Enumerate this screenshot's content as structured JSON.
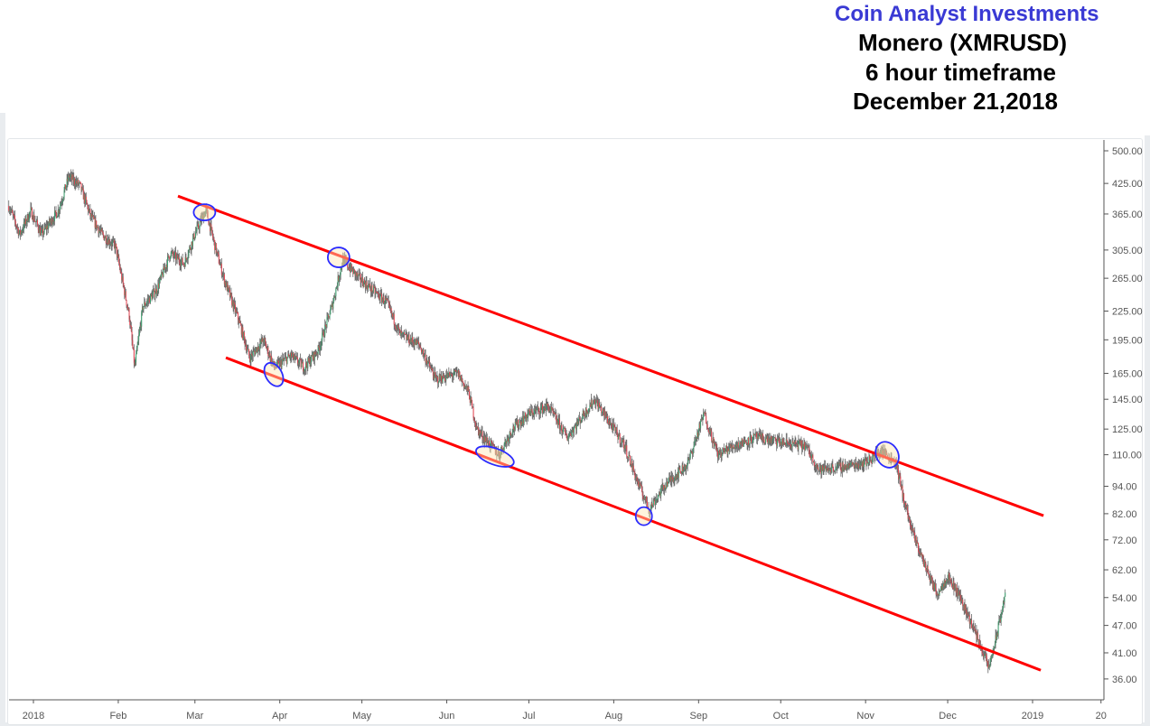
{
  "header": {
    "brand": "Coin Analyst Investments",
    "pair": "Monero (XMRUSD)",
    "timeframe": "6 hour timeframe",
    "date": "December 21,2018"
  },
  "colors": {
    "brand": "#3a3ad4",
    "up": "#3aa36f",
    "down": "#e8414f",
    "wick": "#666666",
    "channel": "#ff0000",
    "marker": "#2b2bff"
  },
  "chart_data": {
    "type": "candlestick",
    "title": "Monero (XMRUSD) 6 hour timeframe",
    "y_scale": "log",
    "ylim": [
      31,
      520
    ],
    "y_ticks": [
      "500.00",
      "425.00",
      "365.00",
      "305.00",
      "265.00",
      "225.00",
      "195.00",
      "165.00",
      "145.00",
      "125.00",
      "110.00",
      "94.00",
      "82.00",
      "72.00",
      "62.00",
      "54.00",
      "47.00",
      "41.00",
      "36.00"
    ],
    "x_ticks": [
      {
        "label": "2018",
        "day": 0
      },
      {
        "label": "Feb",
        "day": 31
      },
      {
        "label": "Mar",
        "day": 59
      },
      {
        "label": "Apr",
        "day": 90
      },
      {
        "label": "May",
        "day": 120
      },
      {
        "label": "Jun",
        "day": 151
      },
      {
        "label": "Jul",
        "day": 181
      },
      {
        "label": "Aug",
        "day": 212
      },
      {
        "label": "Sep",
        "day": 243
      },
      {
        "label": "Oct",
        "day": 273
      },
      {
        "label": "Nov",
        "day": 304
      },
      {
        "label": "Dec",
        "day": 334
      },
      {
        "label": "2019",
        "day": 365
      },
      {
        "label": "20",
        "day": 390
      }
    ],
    "xlim_days": [
      -9,
      395
    ],
    "price_path_approx": [
      [
        -9,
        380
      ],
      [
        -5,
        330
      ],
      [
        -1,
        370
      ],
      [
        3,
        330
      ],
      [
        9,
        370
      ],
      [
        13,
        440
      ],
      [
        17,
        420
      ],
      [
        21,
        360
      ],
      [
        25,
        330
      ],
      [
        30,
        310
      ],
      [
        35,
        220
      ],
      [
        37,
        170
      ],
      [
        40,
        230
      ],
      [
        45,
        250
      ],
      [
        50,
        300
      ],
      [
        55,
        285
      ],
      [
        59,
        330
      ],
      [
        63,
        372
      ],
      [
        67,
        300
      ],
      [
        70,
        260
      ],
      [
        75,
        215
      ],
      [
        79,
        178
      ],
      [
        84,
        195
      ],
      [
        88,
        170
      ],
      [
        94,
        180
      ],
      [
        99,
        170
      ],
      [
        104,
        185
      ],
      [
        109,
        230
      ],
      [
        113,
        290
      ],
      [
        119,
        265
      ],
      [
        129,
        235
      ],
      [
        134,
        200
      ],
      [
        141,
        190
      ],
      [
        147,
        160
      ],
      [
        155,
        165
      ],
      [
        159,
        150
      ],
      [
        162,
        125
      ],
      [
        170,
        110
      ],
      [
        175,
        125
      ],
      [
        181,
        135
      ],
      [
        188,
        140
      ],
      [
        195,
        120
      ],
      [
        205,
        145
      ],
      [
        212,
        125
      ],
      [
        216,
        115
      ],
      [
        221,
        95
      ],
      [
        225,
        84
      ],
      [
        231,
        95
      ],
      [
        239,
        105
      ],
      [
        245,
        135
      ],
      [
        250,
        110
      ],
      [
        256,
        115
      ],
      [
        264,
        120
      ],
      [
        273,
        117
      ],
      [
        282,
        115
      ],
      [
        287,
        102
      ],
      [
        297,
        104
      ],
      [
        304,
        106
      ],
      [
        310,
        112
      ],
      [
        315,
        106
      ],
      [
        318,
        88
      ],
      [
        321,
        75
      ],
      [
        325,
        65
      ],
      [
        330,
        55
      ],
      [
        334,
        60
      ],
      [
        338,
        55
      ],
      [
        343,
        47
      ],
      [
        347,
        41
      ],
      [
        349,
        38
      ],
      [
        352,
        45
      ],
      [
        355,
        55
      ]
    ],
    "channel_lines": [
      {
        "name": "upper",
        "from": [
          52.8,
          399
        ],
        "to": [
          369,
          81.2
        ]
      },
      {
        "name": "lower",
        "from": [
          70.3,
          178.4
        ],
        "to": [
          368,
          37.6
        ]
      }
    ],
    "touch_markers": [
      {
        "day": 62.5,
        "price": 368
      },
      {
        "day": 111.5,
        "price": 294
      },
      {
        "day": 87.8,
        "price": 164
      },
      {
        "day": 168.6,
        "price": 109
      },
      {
        "day": 223,
        "price": 81
      },
      {
        "day": 311.9,
        "price": 110
      }
    ]
  }
}
